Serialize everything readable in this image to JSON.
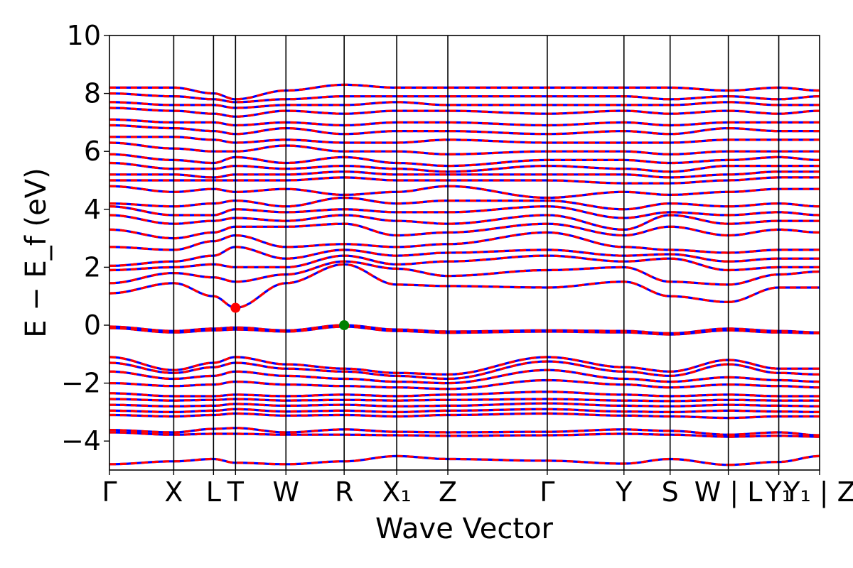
{
  "chart_data": {
    "type": "line",
    "title": "",
    "xlabel": "Wave Vector",
    "ylabel": "E − E_f (eV)",
    "ylim": [
      -5,
      10
    ],
    "yticks": [
      -4,
      -2,
      0,
      2,
      4,
      6,
      8,
      10
    ],
    "ytick_labels": [
      "−4",
      "−2",
      "0",
      "2",
      "4",
      "6",
      "8",
      "10"
    ],
    "grid": false,
    "legend": "none",
    "series_colors": {
      "spin_up": "#ff0000",
      "spin_down": "#0000ff"
    },
    "kpath": [
      {
        "label": "Γ",
        "x": 0.0
      },
      {
        "label": "X",
        "x": 0.0905
      },
      {
        "label": "L",
        "x": 0.1465
      },
      {
        "label": "T",
        "x": 0.1775
      },
      {
        "label": "W",
        "x": 0.2485
      },
      {
        "label": "R",
        "x": 0.3305
      },
      {
        "label": "X₁",
        "x": 0.4045
      },
      {
        "label": "Z",
        "x": 0.4765
      },
      {
        "label": "Γ",
        "x": 0.6165
      },
      {
        "label": "Y",
        "x": 0.7245
      },
      {
        "label": "S",
        "x": 0.7895
      },
      {
        "label": "W | L",
        "x": 0.8715
      },
      {
        "label": "Y₁",
        "x": 0.9425
      },
      {
        "label": "Y₁ | Z",
        "x": 1.0
      }
    ],
    "x_range": [
      0,
      1
    ],
    "band_break": {
      "x": 0.8715
    },
    "markers": [
      {
        "name": "CBM",
        "x": 0.1775,
        "y": 0.6,
        "color": "#ff0000"
      },
      {
        "name": "VBM",
        "x": 0.3305,
        "y": 0.0,
        "color": "#008000"
      }
    ],
    "bands": [
      {
        "y": [
          -4.8,
          -4.7,
          -4.62,
          -4.75,
          -4.8,
          -4.7,
          -4.52,
          -4.62,
          -4.68,
          -4.78,
          -4.62,
          -4.82,
          -4.72,
          -4.52
        ]
      },
      {
        "y": [
          -3.62,
          -3.7,
          -3.58,
          -3.55,
          -3.7,
          -3.6,
          -3.68,
          -3.7,
          -3.68,
          -3.6,
          -3.65,
          -3.78,
          -3.7,
          -3.8
        ]
      },
      {
        "y": [
          -3.7,
          -3.78,
          -3.75,
          -3.75,
          -3.78,
          -3.78,
          -3.8,
          -3.82,
          -3.8,
          -3.75,
          -3.78,
          -3.85,
          -3.82,
          -3.85
        ]
      },
      {
        "y": [
          -2.35,
          -2.45,
          -2.45,
          -2.4,
          -2.45,
          -2.4,
          -2.45,
          -2.4,
          -2.3,
          -2.4,
          -2.45,
          -2.4,
          -2.45,
          -2.45
        ]
      },
      {
        "y": [
          -2.55,
          -2.6,
          -2.58,
          -2.55,
          -2.6,
          -2.58,
          -2.6,
          -2.58,
          -2.55,
          -2.6,
          -2.62,
          -2.58,
          -2.6,
          -2.6
        ]
      },
      {
        "y": [
          -2.75,
          -2.8,
          -2.78,
          -2.72,
          -2.78,
          -2.75,
          -2.8,
          -2.78,
          -2.7,
          -2.78,
          -2.8,
          -2.75,
          -2.78,
          -2.8
        ]
      },
      {
        "y": [
          -2.95,
          -3.0,
          -2.95,
          -2.9,
          -2.98,
          -2.95,
          -3.0,
          -2.95,
          -2.9,
          -2.98,
          -3.0,
          -2.95,
          -2.98,
          -3.0
        ]
      },
      {
        "y": [
          -3.1,
          -3.15,
          -3.1,
          -3.05,
          -3.12,
          -3.1,
          -3.15,
          -3.1,
          -3.05,
          -3.12,
          -3.15,
          -3.2,
          -3.15,
          -3.15
        ]
      },
      {
        "y": [
          -1.1,
          -1.55,
          -1.3,
          -1.1,
          -1.35,
          -1.5,
          -1.65,
          -1.7,
          -1.1,
          -1.45,
          -1.6,
          -1.2,
          -1.5,
          -1.5
        ]
      },
      {
        "y": [
          -1.3,
          -1.65,
          -1.45,
          -1.3,
          -1.5,
          -1.6,
          -1.75,
          -1.85,
          -1.25,
          -1.6,
          -1.75,
          -1.35,
          -1.65,
          -1.7
        ]
      },
      {
        "y": [
          -1.6,
          -1.85,
          -1.75,
          -1.6,
          -1.75,
          -1.85,
          -1.95,
          -2.0,
          -1.55,
          -1.85,
          -1.95,
          -1.8,
          -1.9,
          -1.95
        ]
      },
      {
        "y": [
          -2.0,
          -2.1,
          -2.05,
          -1.95,
          -2.05,
          -2.1,
          -2.15,
          -2.2,
          -1.9,
          -2.05,
          -2.15,
          -2.05,
          -2.1,
          -2.15
        ]
      },
      {
        "y": [
          -0.05,
          -0.2,
          -0.12,
          -0.08,
          -0.18,
          0.0,
          -0.15,
          -0.22,
          -0.18,
          -0.2,
          -0.28,
          -0.12,
          -0.2,
          -0.25
        ]
      },
      {
        "y": [
          -0.1,
          -0.25,
          -0.18,
          -0.15,
          -0.22,
          -0.05,
          -0.2,
          -0.26,
          -0.22,
          -0.25,
          -0.32,
          -0.18,
          -0.25,
          -0.28
        ]
      },
      {
        "y": [
          1.1,
          1.45,
          1.0,
          0.6,
          1.45,
          2.1,
          1.4,
          1.35,
          1.3,
          1.5,
          1.0,
          0.8,
          1.3,
          1.3
        ]
      },
      {
        "y": [
          1.45,
          1.8,
          1.65,
          1.5,
          1.75,
          2.2,
          1.95,
          1.7,
          1.9,
          2.0,
          1.5,
          1.4,
          1.75,
          1.85
        ]
      },
      {
        "y": [
          1.9,
          2.0,
          2.1,
          2.0,
          2.0,
          2.4,
          2.1,
          2.2,
          2.4,
          2.2,
          2.3,
          1.9,
          2.0,
          2.0
        ]
      },
      {
        "y": [
          2.05,
          2.2,
          2.4,
          2.7,
          2.3,
          2.6,
          2.4,
          2.5,
          2.6,
          2.4,
          2.45,
          2.2,
          2.3,
          2.3
        ]
      },
      {
        "y": [
          2.7,
          2.6,
          2.9,
          3.1,
          2.7,
          2.8,
          2.7,
          2.8,
          3.2,
          2.7,
          2.6,
          2.5,
          2.6,
          2.6
        ]
      },
      {
        "y": [
          3.3,
          3.0,
          3.2,
          3.4,
          3.4,
          3.5,
          3.1,
          3.2,
          3.5,
          3.1,
          3.4,
          3.1,
          3.3,
          3.2
        ]
      },
      {
        "y": [
          3.8,
          3.5,
          3.6,
          3.7,
          3.6,
          3.8,
          3.6,
          3.5,
          3.8,
          3.3,
          3.8,
          3.5,
          3.6,
          3.6
        ]
      },
      {
        "y": [
          4.1,
          3.8,
          3.8,
          4.0,
          3.9,
          4.0,
          3.9,
          3.9,
          4.1,
          3.7,
          3.9,
          3.8,
          3.9,
          3.8
        ]
      },
      {
        "y": [
          4.2,
          4.1,
          4.2,
          4.3,
          4.1,
          4.4,
          4.2,
          4.3,
          4.3,
          4.0,
          4.2,
          4.1,
          4.2,
          4.1
        ]
      },
      {
        "y": [
          4.8,
          4.6,
          4.7,
          4.6,
          4.7,
          4.5,
          4.6,
          4.8,
          4.4,
          4.6,
          4.5,
          4.6,
          4.7,
          4.7
        ]
      },
      {
        "y": [
          5.0,
          5.0,
          5.0,
          5.0,
          5.0,
          5.1,
          5.0,
          5.0,
          5.0,
          4.9,
          4.9,
          5.0,
          5.1,
          5.1
        ]
      },
      {
        "y": [
          5.2,
          5.2,
          5.1,
          5.2,
          5.2,
          5.3,
          5.2,
          5.2,
          5.2,
          5.2,
          5.1,
          5.2,
          5.3,
          5.3
        ]
      },
      {
        "y": [
          5.6,
          5.4,
          5.4,
          5.5,
          5.4,
          5.5,
          5.4,
          5.3,
          5.5,
          5.4,
          5.3,
          5.5,
          5.5,
          5.5
        ]
      },
      {
        "y": [
          5.9,
          5.7,
          5.6,
          5.8,
          5.6,
          5.8,
          5.6,
          5.5,
          5.7,
          5.7,
          5.6,
          5.7,
          5.8,
          5.7
        ]
      },
      {
        "y": [
          6.3,
          6.1,
          6.0,
          6.0,
          6.2,
          6.0,
          6.0,
          5.9,
          6.0,
          6.0,
          5.9,
          6.0,
          6.0,
          6.0
        ]
      },
      {
        "y": [
          6.5,
          6.5,
          6.4,
          6.3,
          6.4,
          6.3,
          6.3,
          6.4,
          6.3,
          6.3,
          6.3,
          6.4,
          6.4,
          6.4
        ]
      },
      {
        "y": [
          6.9,
          6.8,
          6.7,
          6.6,
          6.8,
          6.6,
          6.7,
          6.7,
          6.6,
          6.7,
          6.6,
          6.8,
          6.7,
          6.7
        ]
      },
      {
        "y": [
          7.1,
          7.0,
          7.0,
          6.9,
          7.0,
          6.9,
          7.0,
          7.0,
          6.9,
          7.0,
          6.9,
          7.0,
          7.0,
          7.0
        ]
      },
      {
        "y": [
          7.5,
          7.4,
          7.3,
          7.2,
          7.4,
          7.3,
          7.4,
          7.4,
          7.3,
          7.4,
          7.3,
          7.4,
          7.3,
          7.4
        ]
      },
      {
        "y": [
          7.7,
          7.6,
          7.6,
          7.5,
          7.6,
          7.6,
          7.7,
          7.6,
          7.6,
          7.6,
          7.6,
          7.7,
          7.6,
          7.6
        ]
      },
      {
        "y": [
          8.0,
          7.9,
          7.8,
          7.7,
          7.8,
          7.9,
          7.9,
          7.9,
          7.9,
          7.9,
          7.8,
          7.9,
          7.8,
          7.9
        ]
      },
      {
        "y": [
          8.2,
          8.2,
          8.0,
          7.8,
          8.1,
          8.3,
          8.2,
          8.2,
          8.2,
          8.2,
          8.2,
          8.1,
          8.2,
          8.1
        ]
      }
    ]
  }
}
